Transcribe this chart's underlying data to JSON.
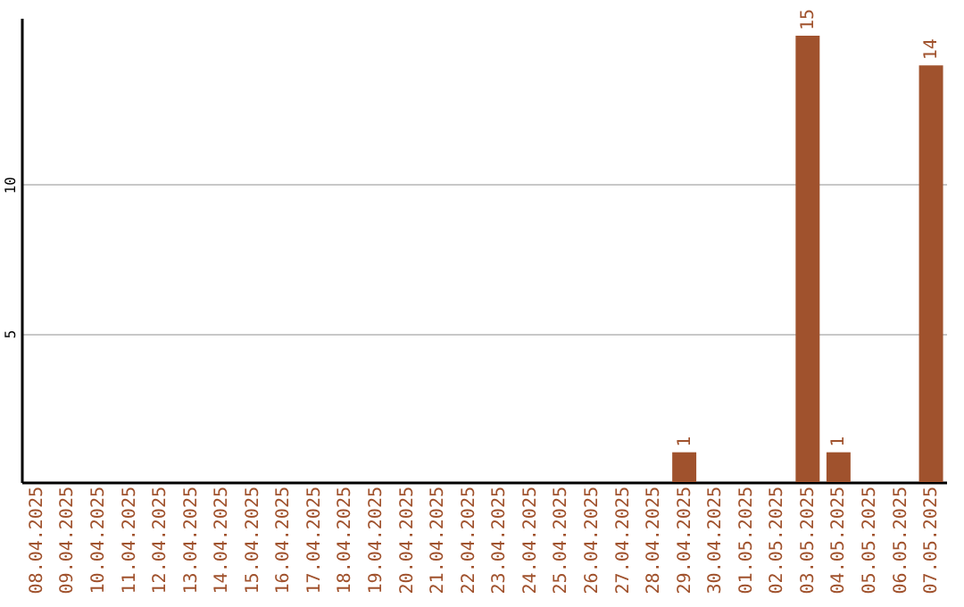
{
  "chart_data": {
    "type": "bar",
    "categories": [
      "08.04.2025",
      "09.04.2025",
      "10.04.2025",
      "11.04.2025",
      "12.04.2025",
      "13.04.2025",
      "14.04.2025",
      "15.04.2025",
      "16.04.2025",
      "17.04.2025",
      "18.04.2025",
      "19.04.2025",
      "20.04.2025",
      "21.04.2025",
      "22.04.2025",
      "23.04.2025",
      "24.04.2025",
      "25.04.2025",
      "26.04.2025",
      "27.04.2025",
      "28.04.2025",
      "29.04.2025",
      "30.04.2025",
      "01.05.2025",
      "02.05.2025",
      "03.05.2025",
      "04.05.2025",
      "05.05.2025",
      "06.05.2025",
      "07.05.2025"
    ],
    "values": [
      0,
      0,
      0,
      0,
      0,
      0,
      0,
      0,
      0,
      0,
      0,
      0,
      0,
      0,
      0,
      0,
      0,
      0,
      0,
      0,
      0,
      1,
      0,
      0,
      0,
      15,
      1,
      0,
      0,
      14
    ],
    "value_labels": [
      null,
      null,
      null,
      null,
      null,
      null,
      null,
      null,
      null,
      null,
      null,
      null,
      null,
      null,
      null,
      null,
      null,
      null,
      null,
      null,
      null,
      "1",
      null,
      null,
      null,
      "15",
      "1",
      null,
      null,
      "14"
    ],
    "color": "#a0522d",
    "ylim": [
      0,
      15.6
    ],
    "yticks": [
      5,
      10
    ],
    "grid": "y"
  }
}
